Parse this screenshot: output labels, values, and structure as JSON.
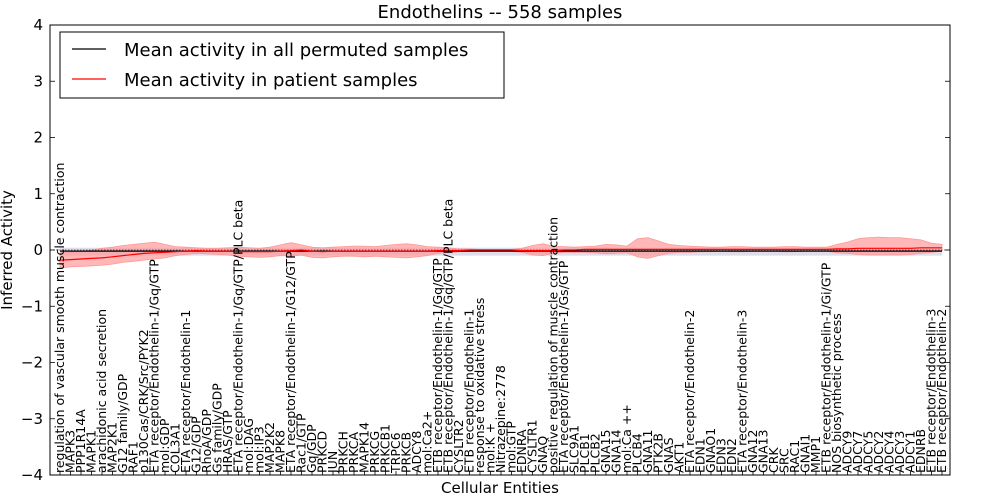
{
  "chart_data": {
    "type": "line",
    "title": "Endothelins -- 558 samples",
    "xlabel": "Cellular Entities",
    "ylabel": "Inferred Activity",
    "ylim": [
      -4,
      4
    ],
    "yticks": [
      "−4",
      "−3",
      "−2",
      "−1",
      "0",
      "1",
      "2",
      "3",
      "4"
    ],
    "grid": false,
    "legend_position": "top-left",
    "colors": {
      "permuted": "#000000",
      "patient": "#ff0000",
      "patient_band": "#ff9999",
      "permuted_band": "#c8c8dc"
    },
    "categories": [
      "regulation of vascular smooth muscle contraction",
      "MAPK3",
      "PPP1R14A",
      "MAPK1",
      "arachidonic acid secretion",
      "MAP2K1",
      "G12 family/GDP",
      "RAF1",
      "p130Cas/CRK/Src/PYK2",
      "ETA receptor/Endothelin-1/Gq/GTP",
      "mol:GDP",
      "COL3A1",
      "ETA receptor/Endothelin-1",
      "G12/GDP",
      "RhoA/GDP",
      "Gs family/GDP",
      "HRAS/GTP",
      "ETA receptor/Endothelin-1/Gq/GTP/PLC beta",
      "mol:DAG",
      "mol:IP3",
      "MAP2K2",
      "MAPK8",
      "ETA receptor/Endothelin-1/G12/GTP",
      "Rac1/GTP",
      "Gq/GDP",
      "PRKCD",
      "JUN",
      "PRKCH",
      "PRKCA",
      "MAPK14",
      "PRKCG",
      "PRKCB1",
      "TRPC6",
      "PRKCB",
      "ADCY8",
      "mol:Ca2+",
      "ETB receptor/Endothelin-1/Gq/GTP",
      "ETB receptor/Endothelin-1/Gq/GTP/PLC beta",
      "CYSLTR2",
      "ETB receptor/Endothelin-1",
      "response to oxidative stress",
      "mol:K +",
      "Nitrazepine:2778",
      "mol:GTP",
      "EDNRA",
      "CYSLTR1",
      "GNAQ",
      "positive regulation of muscle contraction",
      "ETA receptor/Endothelin-1/Gs/GTP",
      "SLC9A1",
      "PLCB1",
      "PLCB2",
      "GNA15",
      "GNA14",
      "mol:Ca ++",
      "PLCB4",
      "GNA11",
      "PTK2B",
      "GNAS",
      "AKT1",
      "ETA receptor/Endothelin-2",
      "EDN1",
      "GNAO1",
      "EDN3",
      "EDN2",
      "ETA receptor/Endothelin-3",
      "GNA12",
      "GNA13",
      "CRK",
      "SRC",
      "RAC1",
      "GNAI1",
      "MMP1",
      "ETB receptor/Endothelin-1/Gi/GTP",
      "NOS biosynthetic process",
      "ADCY9",
      "ADCY7",
      "ADCY5",
      "ADCY2",
      "ADCY4",
      "ADCY3",
      "ADCY1",
      "EDNRB",
      "ETB receptor/Endothelin-3",
      "ETB receptor/Endothelin-2"
    ],
    "series": [
      {
        "name": "Mean activity in all permuted samples",
        "color": "#000000",
        "values": [
          -0.02,
          -0.02,
          -0.02,
          -0.02,
          -0.02,
          -0.02,
          -0.02,
          -0.02,
          -0.02,
          -0.02,
          -0.02,
          -0.02,
          -0.02,
          -0.02,
          -0.02,
          -0.02,
          -0.02,
          -0.02,
          -0.02,
          -0.02,
          -0.02,
          -0.02,
          -0.02,
          -0.02,
          -0.02,
          -0.02,
          -0.02,
          -0.02,
          -0.02,
          -0.02,
          -0.02,
          -0.02,
          -0.02,
          -0.02,
          -0.02,
          -0.02,
          -0.02,
          -0.02,
          -0.02,
          -0.02,
          -0.02,
          -0.02,
          -0.02,
          -0.02,
          -0.02,
          -0.02,
          -0.02,
          -0.02,
          -0.02,
          -0.02,
          -0.02,
          -0.02,
          -0.02,
          -0.02,
          -0.02,
          -0.02,
          -0.02,
          -0.02,
          -0.02,
          -0.02,
          -0.02,
          -0.02,
          -0.02,
          -0.02,
          -0.02,
          -0.02,
          -0.02,
          -0.02,
          -0.02,
          -0.02,
          -0.02,
          -0.02,
          -0.02,
          -0.02,
          -0.02,
          -0.02,
          -0.02,
          -0.02,
          -0.02,
          -0.02,
          -0.02,
          -0.02,
          -0.02,
          -0.02,
          -0.02
        ]
      },
      {
        "name": "Mean activity in patient samples",
        "color": "#ff0000",
        "values": [
          -0.18,
          -0.17,
          -0.16,
          -0.15,
          -0.14,
          -0.12,
          -0.1,
          -0.08,
          -0.06,
          -0.05,
          -0.04,
          -0.03,
          -0.02,
          -0.01,
          -0.02,
          -0.02,
          -0.02,
          -0.03,
          -0.03,
          -0.03,
          -0.03,
          -0.02,
          -0.01,
          0.0,
          -0.02,
          -0.03,
          -0.02,
          -0.02,
          -0.02,
          -0.02,
          -0.02,
          -0.02,
          -0.02,
          -0.02,
          -0.02,
          -0.02,
          -0.01,
          -0.01,
          -0.01,
          0.0,
          0.0,
          0.0,
          0.0,
          0.0,
          -0.01,
          -0.01,
          -0.01,
          -0.01,
          0.0,
          0.0,
          0.01,
          0.01,
          0.01,
          0.01,
          0.01,
          0.01,
          0.01,
          0.01,
          0.01,
          0.01,
          0.01,
          0.01,
          0.01,
          0.01,
          0.01,
          0.01,
          0.01,
          0.01,
          0.01,
          0.01,
          0.01,
          0.01,
          0.01,
          0.01,
          0.02,
          0.02,
          0.03,
          0.03,
          0.03,
          0.03,
          0.03,
          0.03,
          0.04,
          0.04,
          0.04
        ]
      }
    ],
    "patient_band_upper": [
      -0.05,
      -0.04,
      -0.03,
      0.0,
      0.03,
      0.05,
      0.08,
      0.1,
      0.12,
      0.14,
      0.1,
      0.06,
      0.05,
      0.04,
      0.03,
      0.03,
      0.04,
      0.05,
      0.04,
      0.03,
      0.05,
      0.09,
      0.13,
      0.09,
      0.05,
      0.04,
      0.05,
      0.06,
      0.07,
      0.07,
      0.06,
      0.08,
      0.1,
      0.11,
      0.09,
      0.06,
      0.05,
      0.04,
      0.02,
      0.02,
      0.01,
      0.01,
      0.01,
      0.01,
      0.03,
      0.08,
      0.11,
      0.07,
      0.06,
      0.05,
      0.06,
      0.07,
      0.1,
      0.09,
      0.07,
      0.2,
      0.22,
      0.16,
      0.1,
      0.08,
      0.07,
      0.06,
      0.05,
      0.05,
      0.06,
      0.06,
      0.05,
      0.05,
      0.05,
      0.06,
      0.06,
      0.05,
      0.05,
      0.05,
      0.1,
      0.14,
      0.2,
      0.22,
      0.23,
      0.22,
      0.22,
      0.2,
      0.18,
      0.12,
      0.1
    ],
    "patient_band_lower": [
      -0.32,
      -0.3,
      -0.29,
      -0.28,
      -0.27,
      -0.25,
      -0.22,
      -0.2,
      -0.18,
      -0.16,
      -0.14,
      -0.1,
      -0.08,
      -0.06,
      -0.07,
      -0.08,
      -0.09,
      -0.11,
      -0.12,
      -0.13,
      -0.12,
      -0.1,
      -0.11,
      -0.09,
      -0.13,
      -0.14,
      -0.12,
      -0.11,
      -0.11,
      -0.12,
      -0.11,
      -0.12,
      -0.13,
      -0.14,
      -0.12,
      -0.1,
      -0.06,
      -0.05,
      -0.03,
      -0.02,
      -0.02,
      -0.02,
      -0.02,
      -0.02,
      -0.04,
      -0.09,
      -0.1,
      -0.06,
      -0.04,
      -0.04,
      -0.04,
      -0.05,
      -0.07,
      -0.06,
      -0.05,
      -0.12,
      -0.15,
      -0.1,
      -0.06,
      -0.04,
      -0.04,
      -0.03,
      -0.03,
      -0.02,
      -0.03,
      -0.03,
      -0.02,
      -0.02,
      -0.02,
      -0.03,
      -0.03,
      -0.02,
      -0.02,
      -0.02,
      -0.05,
      -0.06,
      -0.08,
      -0.09,
      -0.09,
      -0.09,
      -0.09,
      -0.08,
      -0.06,
      -0.04,
      -0.02
    ],
    "permuted_band_upper": [
      0.04,
      0.04,
      0.04,
      0.04,
      0.04,
      0.04,
      0.04,
      0.04,
      0.04,
      0.04,
      0.04,
      0.04,
      0.04,
      0.04,
      0.04,
      0.04,
      0.04,
      0.04,
      0.04,
      0.04,
      0.04,
      0.04,
      0.04,
      0.04,
      0.04,
      0.04,
      0.04,
      0.04,
      0.04,
      0.04,
      0.04,
      0.04,
      0.04,
      0.04,
      0.04,
      0.04,
      0.04,
      0.04,
      0.04,
      0.04,
      0.04,
      0.04,
      0.04,
      0.04,
      0.04,
      0.04,
      0.04,
      0.04,
      0.04,
      0.04,
      0.04,
      0.04,
      0.04,
      0.04,
      0.04,
      0.04,
      0.04,
      0.04,
      0.04,
      0.04,
      0.04,
      0.04,
      0.04,
      0.04,
      0.04,
      0.04,
      0.04,
      0.04,
      0.04,
      0.04,
      0.04,
      0.04,
      0.04,
      0.04,
      0.04,
      0.04,
      0.04,
      0.04,
      0.04,
      0.04,
      0.04,
      0.04,
      0.04,
      0.04,
      0.04
    ],
    "permuted_band_lower": [
      -0.1,
      -0.1,
      -0.1,
      -0.1,
      -0.1,
      -0.1,
      -0.1,
      -0.1,
      -0.1,
      -0.1,
      -0.1,
      -0.1,
      -0.1,
      -0.1,
      -0.1,
      -0.1,
      -0.1,
      -0.1,
      -0.1,
      -0.1,
      -0.1,
      -0.1,
      -0.1,
      -0.1,
      -0.1,
      -0.1,
      -0.1,
      -0.1,
      -0.1,
      -0.1,
      -0.1,
      -0.1,
      -0.1,
      -0.1,
      -0.1,
      -0.1,
      -0.1,
      -0.1,
      -0.1,
      -0.1,
      -0.1,
      -0.1,
      -0.1,
      -0.1,
      -0.1,
      -0.1,
      -0.1,
      -0.1,
      -0.1,
      -0.1,
      -0.1,
      -0.1,
      -0.1,
      -0.1,
      -0.1,
      -0.1,
      -0.1,
      -0.1,
      -0.1,
      -0.1,
      -0.1,
      -0.1,
      -0.1,
      -0.1,
      -0.1,
      -0.1,
      -0.1,
      -0.1,
      -0.1,
      -0.1,
      -0.1,
      -0.1,
      -0.1,
      -0.1,
      -0.1,
      -0.1,
      -0.1,
      -0.1,
      -0.1,
      -0.1,
      -0.1,
      -0.1,
      -0.1,
      -0.1,
      -0.1
    ]
  }
}
